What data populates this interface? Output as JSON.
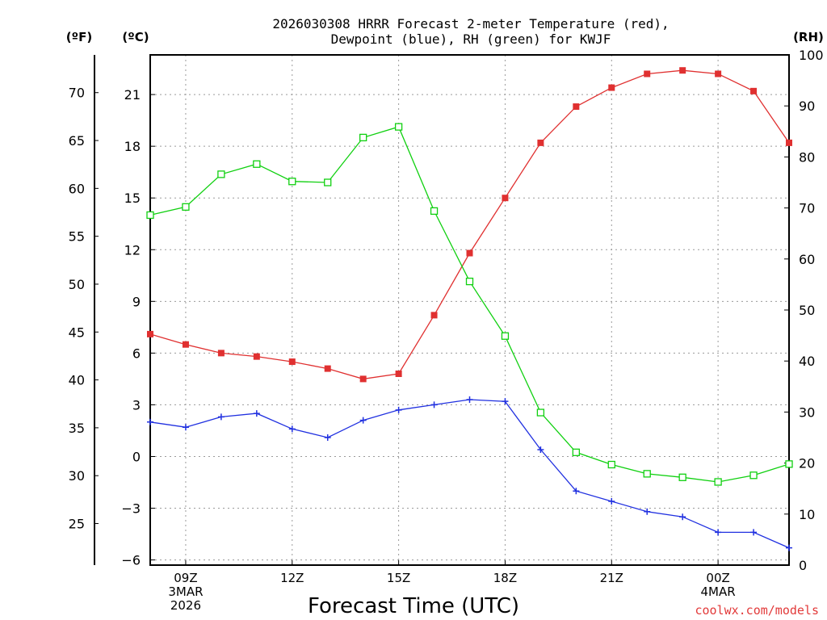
{
  "chart_data": {
    "type": "line",
    "title_line1": "2026030308 HRRR Forecast 2-meter Temperature (red),",
    "title_line2": "Dewpoint (blue), RH (green) for KWJF",
    "xlabel": "Forecast Time (UTC)",
    "units": {
      "fahrenheit": "(ºF)",
      "celsius": "(ºC)",
      "rh": "(RH)"
    },
    "x_hours": [
      8,
      9,
      10,
      11,
      12,
      13,
      14,
      15,
      16,
      17,
      18,
      19,
      20,
      21,
      22,
      23,
      24,
      25,
      26
    ],
    "xlim": [
      8,
      26
    ],
    "x_ticks": [
      {
        "hour": 9,
        "lines": [
          "09Z",
          "3MAR",
          "2026"
        ]
      },
      {
        "hour": 12,
        "lines": [
          "12Z"
        ]
      },
      {
        "hour": 15,
        "lines": [
          "15Z"
        ]
      },
      {
        "hour": 18,
        "lines": [
          "18Z"
        ]
      },
      {
        "hour": 21,
        "lines": [
          "21Z"
        ]
      },
      {
        "hour": 24,
        "lines": [
          "00Z",
          "4MAR"
        ]
      }
    ],
    "y_celsius": {
      "ylim": [
        -6.3,
        23.3
      ],
      "ticks": [
        -6,
        -3,
        0,
        3,
        6,
        9,
        12,
        15,
        18,
        21
      ]
    },
    "y_fahrenheit": {
      "ylim": [
        20.66,
        73.94
      ],
      "ticks": [
        25,
        30,
        35,
        40,
        45,
        50,
        55,
        60,
        65,
        70
      ]
    },
    "y_rh": {
      "ylim": [
        0,
        100
      ],
      "ticks": [
        0,
        10,
        20,
        30,
        40,
        50,
        60,
        70,
        80,
        90,
        100
      ]
    },
    "series": [
      {
        "name": "Temperature",
        "axis": "celsius",
        "color": "#e03030",
        "marker": "filled-square",
        "values": [
          7.1,
          6.5,
          6.0,
          5.8,
          5.5,
          5.1,
          4.5,
          4.8,
          8.2,
          11.8,
          15.0,
          18.2,
          20.3,
          21.4,
          22.2,
          22.4,
          22.2,
          21.2,
          18.2
        ]
      },
      {
        "name": "Dewpoint",
        "axis": "celsius",
        "color": "#2030e0",
        "marker": "plus",
        "values": [
          2.0,
          1.7,
          2.3,
          2.5,
          1.6,
          1.1,
          2.1,
          2.7,
          3.0,
          3.3,
          3.2,
          0.4,
          -2.0,
          -2.6,
          -3.2,
          -3.5,
          -4.4,
          -4.4,
          -5.3
        ]
      },
      {
        "name": "RH",
        "axis": "rh",
        "color": "#10d010",
        "marker": "open-square",
        "values": [
          68.6,
          70.2,
          76.6,
          78.6,
          75.2,
          75.0,
          83.8,
          85.9,
          69.4,
          55.6,
          44.9,
          29.9,
          22.1,
          19.7,
          17.9,
          17.2,
          16.3,
          17.6,
          19.8
        ]
      }
    ],
    "grid": true
  },
  "credit": "coolwx.com/models"
}
